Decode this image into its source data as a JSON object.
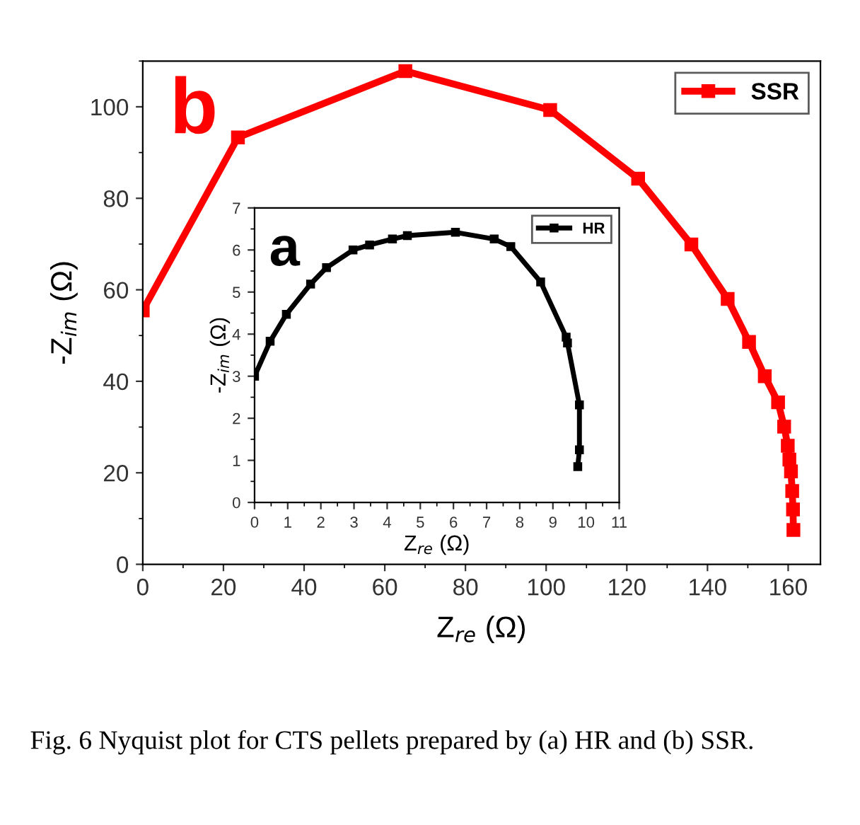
{
  "chart_data": [
    {
      "type": "line",
      "xlabel": "Z$_{re}$ (Ω)",
      "ylabel": "-Z$_{im}$ (Ω)",
      "xlim": [
        0,
        168
      ],
      "ylim": [
        0,
        110
      ],
      "xticks": [
        0,
        20,
        40,
        60,
        80,
        100,
        120,
        140,
        160
      ],
      "yticks": [
        0,
        20,
        40,
        60,
        80,
        100
      ],
      "legend": "top right",
      "marker": "square",
      "line_style": "solid",
      "grid": false,
      "series": [
        {
          "name": "SSR",
          "color": "#ff0000",
          "x": [
            0,
            23.6,
            65.1,
            101,
            122.8,
            136,
            145,
            150.3,
            154.2,
            157.5,
            159,
            159.9,
            160.3,
            160.7,
            161,
            161.2,
            161.3
          ],
          "values": [
            55.5,
            93.3,
            107.8,
            99.3,
            84.3,
            69.9,
            58,
            48.6,
            41.1,
            35.4,
            30.1,
            25.9,
            22.9,
            20.3,
            16,
            12,
            7.5
          ]
        }
      ],
      "annotations": [
        "b",
        "Fig. 6 Nyquist plot for CTS pellets prepared by (a) HR and (b) SSR."
      ]
    },
    {
      "type": "line",
      "xlabel": "Z$_{re}$ (Ω)",
      "ylabel": "-Z$_{im}$ (Ω)",
      "xlim": [
        0,
        11
      ],
      "ylim": [
        0,
        7
      ],
      "xticks": [
        0,
        1,
        2,
        3,
        4,
        5,
        6,
        7,
        8,
        9,
        10,
        11
      ],
      "yticks": [
        0,
        1,
        2,
        3,
        4,
        5,
        6,
        7
      ],
      "legend": "top right",
      "marker": "square",
      "line_style": "solid",
      "grid": false,
      "series": [
        {
          "name": "HR",
          "color": "#000000",
          "x": [
            0,
            0.47,
            0.96,
            1.69,
            2.17,
            2.97,
            3.47,
            4.16,
            4.61,
            6.06,
            7.23,
            7.73,
            8.63,
            9.4,
            9.44,
            9.8,
            9.8,
            9.75
          ],
          "values": [
            3.0,
            3.83,
            4.47,
            5.19,
            5.58,
            6.0,
            6.12,
            6.26,
            6.34,
            6.42,
            6.26,
            6.08,
            5.24,
            3.93,
            3.79,
            2.32,
            1.25,
            0.85
          ]
        }
      ],
      "annotations": [
        "a"
      ]
    }
  ]
}
